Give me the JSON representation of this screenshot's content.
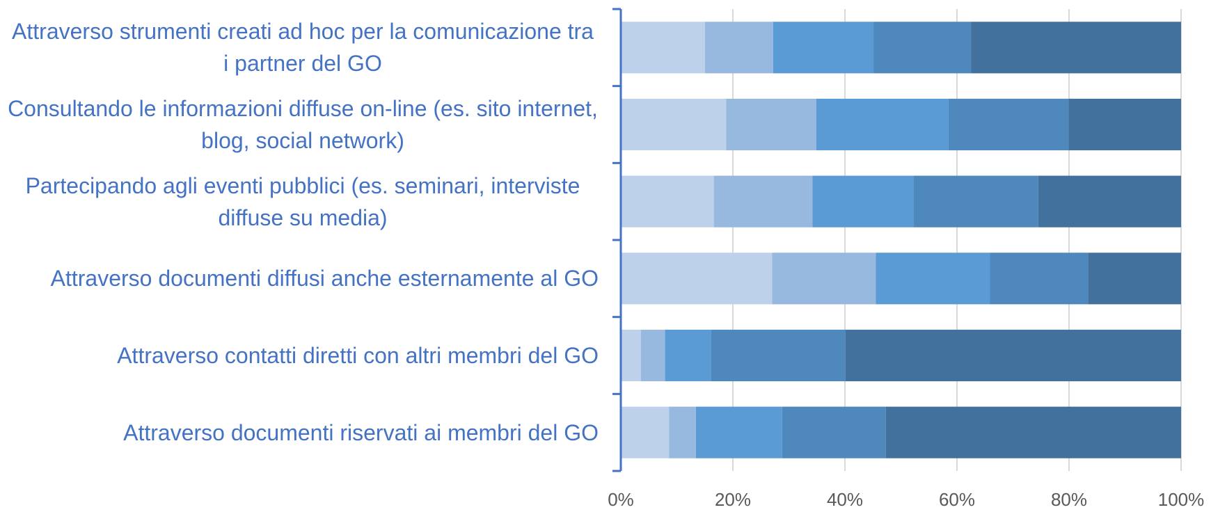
{
  "chart_data": {
    "type": "bar",
    "orientation": "horizontal",
    "stacked": true,
    "categories": [
      "Attraverso strumenti creati ad hoc per la comunicazione tra i partner del GO",
      "Consultando le informazioni diffuse on-line (es. sito internet, blog, social network)",
      "Partecipando agli eventi pubblici (es. seminari, interviste diffuse su media)",
      "Attraverso documenti diffusi anche esternamente al GO",
      "Attraverso contatti diretti con altri membri del GO",
      "Attraverso documenti riservati ai membri del GO"
    ],
    "series": [
      {
        "color": "#bdd1ea",
        "values": [
          15.0,
          18.8,
          16.6,
          27.0,
          3.6,
          8.6
        ]
      },
      {
        "color": "#98b9df",
        "values": [
          12.2,
          16.1,
          17.6,
          18.5,
          4.3,
          4.8
        ]
      },
      {
        "color": "#5b9bd5",
        "values": [
          17.9,
          23.6,
          18.1,
          20.4,
          8.2,
          15.4
        ]
      },
      {
        "color": "#4e88bc",
        "values": [
          17.4,
          21.4,
          22.2,
          17.5,
          24.0,
          18.5
        ]
      },
      {
        "color": "#41719c",
        "values": [
          37.5,
          20.1,
          25.5,
          16.6,
          59.9,
          52.7
        ]
      }
    ],
    "xlim": [
      0,
      100
    ],
    "xticks": [
      {
        "value": 0,
        "label": "0%"
      },
      {
        "value": 20,
        "label": "20%"
      },
      {
        "value": 40,
        "label": "40%"
      },
      {
        "value": 60,
        "label": "60%"
      },
      {
        "value": 80,
        "label": "80%"
      },
      {
        "value": 100,
        "label": "100%"
      }
    ],
    "grid": true
  }
}
